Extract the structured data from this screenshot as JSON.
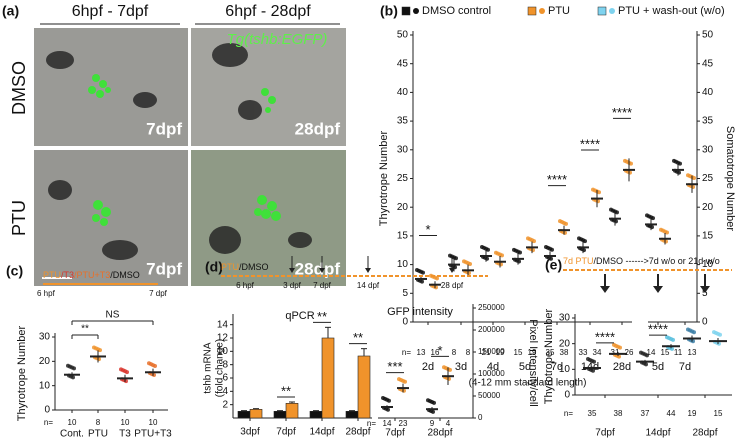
{
  "panel_a": {
    "panel_label": "(a)",
    "column_headers": [
      "6hpf - 7dpf",
      "6hpf - 28dpf"
    ],
    "transgene": "Tg(tshb:EGFP)",
    "row_labels": [
      "DMSO",
      "PTU"
    ],
    "image_labels": [
      [
        "7dpf",
        "28dpf"
      ],
      [
        "7dpf",
        "28dpf"
      ]
    ]
  },
  "chart_data": [
    {
      "type": "dot",
      "panel_label": "(b)",
      "ylabel": "Thyrotrope Number",
      "y2label": "Somatotrope Number",
      "xlabel": "(4-12 mm standard length)",
      "n_label": "n=",
      "categories": [
        "2d",
        "3d",
        "4d",
        "5d",
        "7d",
        "14d",
        "28d",
        "5d",
        "7d"
      ],
      "series": [
        {
          "name": "DMSO control",
          "color": "#111111",
          "values": [
            7.5,
            10,
            11.5,
            11,
            11.5,
            13,
            18,
            17,
            26.5
          ],
          "errors": [
            0.6,
            1.2,
            1,
            1,
            0.8,
            1,
            1.2,
            1,
            1
          ],
          "n": [
            13,
            8,
            21,
            15,
            35,
            33,
            31,
            14,
            11
          ]
        },
        {
          "name": "PTU",
          "color": "#f0932b",
          "values": [
            6.5,
            9,
            10.5,
            13,
            16,
            21.5,
            26.5,
            14.5,
            24
          ],
          "errors": [
            0.6,
            1,
            1,
            1,
            0.8,
            1.5,
            2,
            1,
            1.5
          ],
          "n": [
            16,
            8,
            19,
            19,
            38,
            34,
            26,
            15,
            13
          ]
        },
        {
          "name": "PTU + wash-out (w/o)",
          "color": "#7fd3ef",
          "values": [
            null,
            null,
            null,
            null,
            null,
            null,
            null,
            null,
            null
          ]
        }
      ],
      "significance": [
        "*",
        null,
        null,
        null,
        "****",
        "****",
        "****",
        null,
        null
      ],
      "ylim": [
        0,
        50
      ],
      "yticks": [
        0,
        5,
        10,
        15,
        20,
        25,
        30,
        35,
        40,
        45,
        50
      ],
      "y2lim": [
        0,
        50
      ],
      "y2ticks": [
        0,
        5,
        10,
        15,
        20,
        25,
        30,
        35,
        40,
        45,
        50
      ]
    },
    {
      "type": "dot",
      "panel_label": "(c)",
      "ylabel": "Thyrotrope Number",
      "n_label": "n=",
      "timeline": {
        "segments": [
          {
            "text": "PTU",
            "color": "#f0932b"
          },
          {
            "text": "/T3",
            "color": "#d9342b"
          },
          {
            "text": "/PTU+T3",
            "color": "#e8702a"
          },
          {
            "text": "/DMSO",
            "color": "#111111"
          }
        ],
        "start": "6 hpf",
        "end": "7 dpf"
      },
      "categories": [
        "Cont.",
        "PTU",
        "T3",
        "PTU+T3"
      ],
      "values": [
        14.5,
        22,
        13,
        15.5
      ],
      "errors": [
        1,
        2.5,
        1.5,
        1.5
      ],
      "n": [
        10,
        8,
        10,
        10
      ],
      "colors": [
        "#222222",
        "#f0932b",
        "#d9342b",
        "#e8702a"
      ],
      "comparisons": [
        {
          "label": "**",
          "from": "Cont.",
          "to": "PTU"
        },
        {
          "label": "NS",
          "from": "Cont.",
          "to": "PTU+T3"
        }
      ],
      "ylim": [
        0,
        30
      ],
      "yticks": [
        0,
        10,
        20,
        30
      ]
    },
    {
      "type": "bar",
      "panel_label": "(d)",
      "title": "qPCR",
      "ylabel": [
        "tshb mRNA",
        "(fold change)"
      ],
      "timeline": {
        "segments": [
          {
            "text": "PTU",
            "color": "#f0932b"
          },
          {
            "text": "/DMSO",
            "color": "#111111"
          }
        ],
        "points": [
          "6 hpf",
          "3 dpf",
          "7 dpf",
          "14 dpf",
          "28 dpf"
        ]
      },
      "categories": [
        "3dpf",
        "7dpf",
        "14dpf",
        "28dpf"
      ],
      "series": [
        {
          "color": "#111111",
          "values": [
            1,
            1,
            1,
            1
          ],
          "errors": [
            0.1,
            0.1,
            0.1,
            0.1
          ]
        },
        {
          "color": "#f0932b",
          "values": [
            1.3,
            2.2,
            12,
            9.3
          ],
          "errors": [
            0.1,
            0.2,
            1.6,
            1.1
          ]
        }
      ],
      "significance": [
        null,
        "**",
        "**",
        "**"
      ],
      "ylim": [
        0,
        15
      ],
      "yticks": [
        2,
        4,
        6,
        8,
        10,
        12,
        14
      ]
    },
    {
      "type": "dot",
      "title": "GFP intensity",
      "ylabel": "Pixel Intensity/cell",
      "n_label": "n=",
      "categories": [
        "7dpf",
        "28dpf"
      ],
      "series": [
        {
          "color": "#111111",
          "values": [
            25000,
            20000
          ],
          "errors": [
            4000,
            5000
          ],
          "n": [
            14,
            9
          ]
        },
        {
          "color": "#f0932b",
          "values": [
            68000,
            95000
          ],
          "errors": [
            10000,
            20000
          ],
          "n": [
            23,
            4
          ]
        }
      ],
      "significance": [
        "***",
        "*"
      ],
      "ylim": [
        0,
        250000
      ],
      "yticks": [
        0,
        50000,
        100000,
        150000,
        200000,
        250000
      ]
    },
    {
      "type": "dot",
      "panel_label": "(e)",
      "ylabel": "Thyrotrope Number",
      "n_label": "n=",
      "timeline": {
        "segments": [
          {
            "text": "7d PTU",
            "color": "#f0932b"
          },
          {
            "text": "/DMSO ------>7d w/o or 21d w/o",
            "color": "#111111"
          }
        ]
      },
      "categories": [
        "7dpf",
        "14dpf",
        "28dpf"
      ],
      "series": [
        {
          "colors": [
            "#222222",
            "#222222",
            "#3a7ca5"
          ],
          "values": [
            10.5,
            13,
            22
          ],
          "errors": [
            0.6,
            0.7,
            1.2
          ],
          "n": [
            35,
            37,
            19
          ]
        },
        {
          "colors": [
            "#f0932b",
            "#5bc0de",
            "#7fd3ef"
          ],
          "values": [
            16,
            19,
            21
          ],
          "errors": [
            0.8,
            0.8,
            1.2
          ],
          "n": [
            38,
            44,
            15
          ]
        }
      ],
      "significance": [
        "****",
        "****",
        null
      ],
      "ylim": [
        0,
        30
      ],
      "yticks": [
        0,
        10,
        20,
        30
      ]
    }
  ]
}
